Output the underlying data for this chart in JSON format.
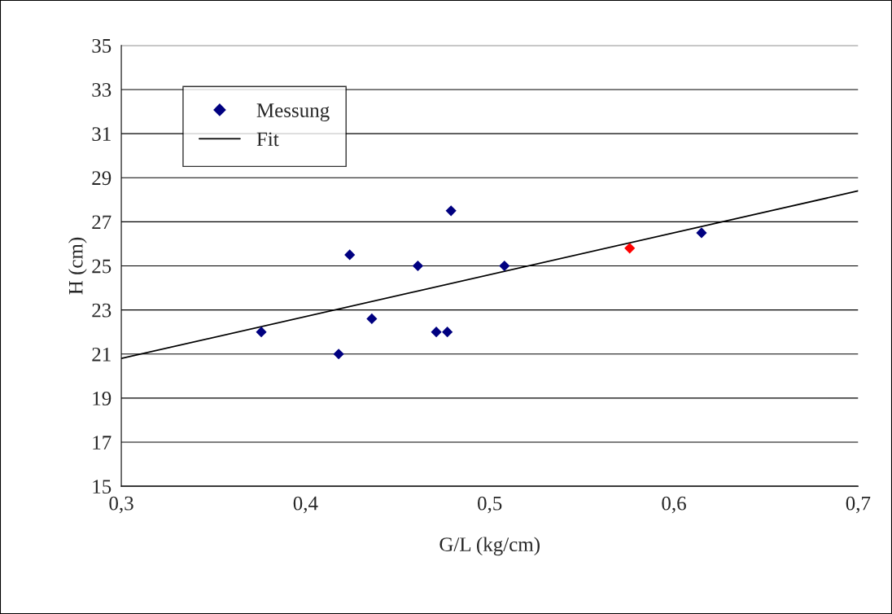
{
  "chart_data": {
    "type": "scatter",
    "xlabel": "G/L (kg/cm)",
    "ylabel": "H (cm)",
    "xlim": [
      0.3,
      0.7
    ],
    "ylim": [
      15,
      35
    ],
    "xticks": [
      {
        "value": 0.3,
        "label": "0,3"
      },
      {
        "value": 0.4,
        "label": "0,4"
      },
      {
        "value": 0.5,
        "label": "0,5"
      },
      {
        "value": 0.6,
        "label": "0,6"
      },
      {
        "value": 0.7,
        "label": "0,7"
      }
    ],
    "yticks": [
      15,
      17,
      19,
      21,
      23,
      25,
      27,
      29,
      31,
      33,
      35
    ],
    "grid": "y",
    "legend": "top left",
    "series": [
      {
        "name": "Messung",
        "marker": "diamond",
        "color": "#000080",
        "x": [
          0.376,
          0.418,
          0.424,
          0.436,
          0.461,
          0.471,
          0.477,
          0.479,
          0.508,
          0.576,
          0.615
        ],
        "values": [
          22,
          21,
          25.5,
          22.6,
          25,
          22,
          22,
          27.5,
          25,
          25.8,
          26.5
        ],
        "colors": [
          "#000080",
          "#000080",
          "#000080",
          "#000080",
          "#000080",
          "#000080",
          "#000080",
          "#000080",
          "#000080",
          "#ff0000",
          "#000080"
        ]
      },
      {
        "name": "Fit",
        "type": "line",
        "marker": "none",
        "line_style": "solid",
        "color": "#000000",
        "x": [
          0.3,
          0.7
        ],
        "values": [
          20.8,
          28.4
        ]
      }
    ]
  }
}
